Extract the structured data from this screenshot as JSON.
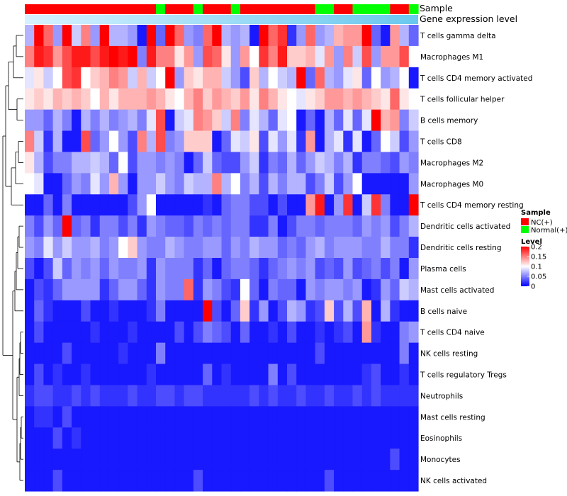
{
  "chart_data": {
    "type": "heatmap",
    "title": "",
    "annotation_labels": {
      "sample": "Sample",
      "level": "Gene expression level"
    },
    "sample_groups": [
      "NC",
      "NC",
      "NC",
      "NC",
      "NC",
      "NC",
      "NC",
      "NC",
      "NC",
      "NC",
      "NC",
      "NC",
      "NC",
      "NC",
      "Normal",
      "NC",
      "NC",
      "NC",
      "Normal",
      "NC",
      "NC",
      "NC",
      "Normal",
      "NC",
      "NC",
      "NC",
      "NC",
      "NC",
      "NC",
      "NC",
      "NC",
      "Normal",
      "Normal",
      "NC",
      "NC",
      "Normal",
      "Normal",
      "Normal",
      "Normal",
      "NC",
      "NC",
      "Normal"
    ],
    "rows": [
      {
        "label": "T cells gamma delta",
        "values": [
          0.07,
          0.2,
          0.16,
          0.06,
          0.2,
          0.08,
          0.15,
          0.06,
          0.2,
          0.07,
          0.07,
          0.06,
          0.01,
          0.2,
          0.04,
          0.2,
          0.16,
          0.06,
          0.05,
          0.16,
          0.2,
          0.07,
          0.06,
          0.07,
          0.01,
          0.2,
          0.16,
          0.18,
          0.02,
          0.06,
          0.16,
          0.06,
          0.07,
          0.13,
          0.14,
          0.14,
          0.2,
          0.04,
          0.01,
          0.14,
          0.07,
          0.04
        ]
      },
      {
        "label": "Macrophages M1",
        "values": [
          0.15,
          0.19,
          0.18,
          0.14,
          0.17,
          0.19,
          0.19,
          0.17,
          0.19,
          0.2,
          0.19,
          0.2,
          0.05,
          0.19,
          0.15,
          0.15,
          0.11,
          0.14,
          0.06,
          0.17,
          0.16,
          0.11,
          0.06,
          0.14,
          0.1,
          0.18,
          0.15,
          0.19,
          0.12,
          0.12,
          0.13,
          0.09,
          0.14,
          0.06,
          0.15,
          0.08,
          0.17,
          0.06,
          0.14,
          0.14,
          0.17,
          0.1
        ]
      },
      {
        "label": "T cells CD4 memory activated",
        "values": [
          0.09,
          0.11,
          0.08,
          0.1,
          0.17,
          0.18,
          0.1,
          0.12,
          0.13,
          0.15,
          0.14,
          0.08,
          0.13,
          0.08,
          0.1,
          0.2,
          0.06,
          0.12,
          0.11,
          0.13,
          0.13,
          0.08,
          0.06,
          0.03,
          0.12,
          0.07,
          0.1,
          0.08,
          0.07,
          0.2,
          0.04,
          0.16,
          0.07,
          0.06,
          0.09,
          0.11,
          0.04,
          0.1,
          0.06,
          0.07,
          0.1,
          0.01
        ]
      },
      {
        "label": "T cells follicular helper",
        "values": [
          0.11,
          0.12,
          0.11,
          0.13,
          0.12,
          0.13,
          0.12,
          0.1,
          0.13,
          0.11,
          0.13,
          0.13,
          0.13,
          0.14,
          0.13,
          0.11,
          0.1,
          0.13,
          0.15,
          0.12,
          0.14,
          0.13,
          0.12,
          0.14,
          0.11,
          0.15,
          0.13,
          0.11,
          0.1,
          0.09,
          0.11,
          0.12,
          0.14,
          0.14,
          0.13,
          0.14,
          0.13,
          0.12,
          0.11,
          0.16,
          0.11,
          0.1
        ]
      },
      {
        "label": "B cells memory",
        "values": [
          0.06,
          0.06,
          0.04,
          0.07,
          0.05,
          0.01,
          0.07,
          0.05,
          0.07,
          0.05,
          0.06,
          0.07,
          0.05,
          0.09,
          0.17,
          0.01,
          0.08,
          0.09,
          0.15,
          0.14,
          0.12,
          0.08,
          0.15,
          0.05,
          0.09,
          0.07,
          0.04,
          0.09,
          0.1,
          0.01,
          0.04,
          0.01,
          0.07,
          0.04,
          0.09,
          0.04,
          0.09,
          0.2,
          0.13,
          0.14,
          0.05,
          0.08
        ]
      },
      {
        "label": "T cells CD8",
        "values": [
          0.15,
          0.08,
          0.02,
          0.07,
          0.01,
          0.01,
          0.17,
          0.04,
          0.06,
          0.1,
          0.06,
          0.03,
          0.15,
          0.07,
          0.17,
          0.05,
          0.06,
          0.12,
          0.12,
          0.12,
          0.01,
          0.04,
          0.09,
          0.08,
          0.11,
          0.03,
          0.09,
          0.06,
          0.09,
          0.02,
          0.14,
          0.01,
          0.07,
          0.09,
          0.02,
          0.09,
          0.01,
          0.04,
          0.1,
          0.08,
          0.03,
          0.06
        ]
      },
      {
        "label": "Macrophages M2",
        "values": [
          0.11,
          0.07,
          0.03,
          0.05,
          0.05,
          0.07,
          0.07,
          0.08,
          0.07,
          0.04,
          0.1,
          0.03,
          0.06,
          0.06,
          0.05,
          0.06,
          0.05,
          0.01,
          0.04,
          0.08,
          0.04,
          0.03,
          0.03,
          0.06,
          0.08,
          0.02,
          0.05,
          0.04,
          0.07,
          0.04,
          0.06,
          0.08,
          0.07,
          0.05,
          0.07,
          0.02,
          0.05,
          0.05,
          0.04,
          0.03,
          0.06,
          0.05
        ]
      },
      {
        "label": "Macrophages M0",
        "values": [
          0.1,
          0.09,
          0.01,
          0.01,
          0.04,
          0.06,
          0.05,
          0.09,
          0.06,
          0.13,
          0.06,
          0.01,
          0.06,
          0.06,
          0.08,
          0.06,
          0.05,
          0.08,
          0.07,
          0.07,
          0.15,
          0.07,
          0.1,
          0.05,
          0.07,
          0.03,
          0.07,
          0.05,
          0.07,
          0.07,
          0.03,
          0.05,
          0.08,
          0.03,
          0.06,
          0.1,
          0.01,
          0.01,
          0.01,
          0.01,
          0.01,
          0.06
        ]
      },
      {
        "label": "T cells CD4 memory resting",
        "values": [
          0.01,
          0.01,
          0.04,
          0.01,
          0.05,
          0.01,
          0.01,
          0.01,
          0.01,
          0.01,
          0.01,
          0.03,
          0.06,
          0.1,
          0.01,
          0.01,
          0.01,
          0.01,
          0.01,
          0.02,
          0.01,
          0.04,
          0.05,
          0.05,
          0.03,
          0.03,
          0.01,
          0.03,
          0.01,
          0.01,
          0.14,
          0.19,
          0.01,
          0.06,
          0.18,
          0.01,
          0.08,
          0.18,
          0.05,
          0.01,
          0.01,
          0.2
        ]
      },
      {
        "label": "Dendritic cells activated",
        "values": [
          0.05,
          0.03,
          0.06,
          0.04,
          0.2,
          0.04,
          0.05,
          0.02,
          0.05,
          0.05,
          0.03,
          0.05,
          0.02,
          0.06,
          0.05,
          0.04,
          0.04,
          0.03,
          0.05,
          0.04,
          0.05,
          0.04,
          0.05,
          0.05,
          0.02,
          0.02,
          0.05,
          0.01,
          0.03,
          0.05,
          0.05,
          0.04,
          0.05,
          0.05,
          0.05,
          0.04,
          0.06,
          0.05,
          0.06,
          0.03,
          0.05,
          0.07
        ]
      },
      {
        "label": "Dendritic cells resting",
        "values": [
          0.06,
          0.05,
          0.09,
          0.06,
          0.08,
          0.06,
          0.06,
          0.07,
          0.05,
          0.06,
          0.1,
          0.12,
          0.06,
          0.05,
          0.05,
          0.07,
          0.06,
          0.05,
          0.05,
          0.06,
          0.06,
          0.04,
          0.06,
          0.05,
          0.07,
          0.06,
          0.06,
          0.04,
          0.05,
          0.04,
          0.06,
          0.07,
          0.05,
          0.06,
          0.06,
          0.06,
          0.05,
          0.05,
          0.07,
          0.05,
          0.05,
          0.02
        ]
      },
      {
        "label": "Plasma cells",
        "values": [
          0.03,
          0.01,
          0.03,
          0.08,
          0.04,
          0.06,
          0.05,
          0.06,
          0.04,
          0.06,
          0.05,
          0.05,
          0.06,
          0.02,
          0.06,
          0.05,
          0.05,
          0.05,
          0.02,
          0.04,
          0.01,
          0.04,
          0.05,
          0.05,
          0.04,
          0.02,
          0.04,
          0.05,
          0.06,
          0.05,
          0.06,
          0.03,
          0.04,
          0.03,
          0.06,
          0.03,
          0.04,
          0.05,
          0.03,
          0.05,
          0.01,
          0.06
        ]
      },
      {
        "label": "Mast cells activated",
        "values": [
          0.01,
          0.03,
          0.02,
          0.04,
          0.06,
          0.06,
          0.06,
          0.06,
          0.02,
          0.04,
          0.06,
          0.06,
          0.04,
          0.02,
          0.06,
          0.05,
          0.05,
          0.16,
          0.02,
          0.06,
          0.05,
          0.03,
          0.02,
          0.1,
          0.04,
          0.01,
          0.05,
          0.04,
          0.04,
          0.01,
          0.06,
          0.05,
          0.06,
          0.06,
          0.05,
          0.06,
          0.01,
          0.02,
          0.06,
          0.04,
          0.08,
          0.07
        ]
      },
      {
        "label": "B cells naive",
        "values": [
          0.01,
          0.04,
          0.02,
          0.01,
          0.01,
          0.01,
          0.03,
          0.01,
          0.01,
          0.02,
          0.01,
          0.01,
          0.01,
          0.02,
          0.05,
          0.01,
          0.01,
          0.01,
          0.01,
          0.2,
          0.03,
          0.01,
          0.04,
          0.12,
          0.02,
          0.06,
          0.01,
          0.03,
          0.07,
          0.06,
          0.02,
          0.03,
          0.12,
          0.03,
          0.07,
          0.03,
          0.13,
          0.01,
          0.07,
          0.02,
          0.01,
          0.01
        ]
      },
      {
        "label": "T cells CD4 naive",
        "values": [
          0.01,
          0.03,
          0.01,
          0.01,
          0.01,
          0.01,
          0.01,
          0.02,
          0.01,
          0.01,
          0.01,
          0.02,
          0.01,
          0.01,
          0.01,
          0.01,
          0.03,
          0.01,
          0.03,
          0.05,
          0.04,
          0.03,
          0.01,
          0.04,
          0.01,
          0.01,
          0.02,
          0.01,
          0.03,
          0.01,
          0.01,
          0.02,
          0.01,
          0.02,
          0.03,
          0.01,
          0.14,
          0.02,
          0.01,
          0.01,
          0.05,
          0.06
        ]
      },
      {
        "label": "NK cells resting",
        "values": [
          0.01,
          0.01,
          0.01,
          0.01,
          0.03,
          0.01,
          0.01,
          0.01,
          0.01,
          0.01,
          0.02,
          0.01,
          0.01,
          0.01,
          0.05,
          0.01,
          0.01,
          0.01,
          0.01,
          0.01,
          0.01,
          0.01,
          0.01,
          0.01,
          0.01,
          0.01,
          0.01,
          0.01,
          0.01,
          0.01,
          0.01,
          0.03,
          0.01,
          0.01,
          0.01,
          0.01,
          0.01,
          0.01,
          0.01,
          0.01,
          0.05,
          0.01
        ]
      },
      {
        "label": "T cells regulatory  Tregs",
        "values": [
          0.01,
          0.03,
          0.01,
          0.02,
          0.01,
          0.01,
          0.02,
          0.01,
          0.01,
          0.01,
          0.01,
          0.01,
          0.01,
          0.02,
          0.01,
          0.01,
          0.01,
          0.01,
          0.01,
          0.04,
          0.01,
          0.02,
          0.01,
          0.01,
          0.01,
          0.01,
          0.05,
          0.01,
          0.03,
          0.01,
          0.01,
          0.01,
          0.01,
          0.01,
          0.01,
          0.01,
          0.02,
          0.03,
          0.01,
          0.01,
          0.02,
          0.01
        ]
      },
      {
        "label": "Neutrophils",
        "values": [
          0.02,
          0.03,
          0.03,
          0.02,
          0.02,
          0.03,
          0.02,
          0.03,
          0.02,
          0.02,
          0.02,
          0.03,
          0.02,
          0.02,
          0.03,
          0.03,
          0.02,
          0.03,
          0.03,
          0.02,
          0.02,
          0.02,
          0.02,
          0.02,
          0.03,
          0.02,
          0.03,
          0.02,
          0.02,
          0.03,
          0.02,
          0.02,
          0.03,
          0.02,
          0.02,
          0.03,
          0.02,
          0.03,
          0.02,
          0.02,
          0.02,
          0.02
        ]
      },
      {
        "label": "Mast cells resting",
        "values": [
          0.01,
          0.02,
          0.02,
          0.01,
          0.03,
          0.01,
          0.01,
          0.01,
          0.01,
          0.01,
          0.01,
          0.01,
          0.01,
          0.01,
          0.01,
          0.01,
          0.01,
          0.01,
          0.01,
          0.01,
          0.01,
          0.01,
          0.01,
          0.01,
          0.01,
          0.01,
          0.01,
          0.01,
          0.01,
          0.01,
          0.01,
          0.01,
          0.01,
          0.01,
          0.01,
          0.01,
          0.01,
          0.01,
          0.01,
          0.01,
          0.01,
          0.01
        ]
      },
      {
        "label": "Eosinophils",
        "values": [
          0.01,
          0.01,
          0.01,
          0.03,
          0.01,
          0.02,
          0.01,
          0.01,
          0.01,
          0.01,
          0.01,
          0.01,
          0.01,
          0.01,
          0.01,
          0.01,
          0.01,
          0.01,
          0.01,
          0.01,
          0.01,
          0.01,
          0.01,
          0.01,
          0.01,
          0.01,
          0.01,
          0.01,
          0.01,
          0.01,
          0.01,
          0.01,
          0.01,
          0.01,
          0.01,
          0.01,
          0.01,
          0.01,
          0.01,
          0.01,
          0.01,
          0.01
        ]
      },
      {
        "label": "Monocytes",
        "values": [
          0.01,
          0.01,
          0.01,
          0.01,
          0.01,
          0.01,
          0.01,
          0.01,
          0.01,
          0.01,
          0.01,
          0.01,
          0.01,
          0.01,
          0.01,
          0.01,
          0.01,
          0.01,
          0.01,
          0.01,
          0.01,
          0.01,
          0.01,
          0.01,
          0.01,
          0.01,
          0.01,
          0.01,
          0.01,
          0.01,
          0.01,
          0.01,
          0.01,
          0.01,
          0.01,
          0.01,
          0.01,
          0.01,
          0.01,
          0.03,
          0.01,
          0.01
        ]
      },
      {
        "label": "NK cells activated",
        "values": [
          0.01,
          0.01,
          0.01,
          0.03,
          0.01,
          0.01,
          0.01,
          0.01,
          0.01,
          0.01,
          0.01,
          0.01,
          0.01,
          0.01,
          0.01,
          0.01,
          0.01,
          0.01,
          0.03,
          0.01,
          0.01,
          0.01,
          0.01,
          0.01,
          0.01,
          0.01,
          0.01,
          0.01,
          0.01,
          0.01,
          0.01,
          0.01,
          0.03,
          0.01,
          0.01,
          0.01,
          0.01,
          0.01,
          0.01,
          0.01,
          0.01,
          0.01
        ]
      }
    ],
    "color_scale": {
      "min": 0,
      "mid": 0.1,
      "max": 0.2,
      "low_color": "#0000ff",
      "mid_color": "#ffffff",
      "high_color": "#ff0000"
    },
    "legend_sample": {
      "title": "Sample",
      "items": [
        {
          "label": "NC(+)",
          "color": "#ff0000"
        },
        {
          "label": "Normal(+)",
          "color": "#00ff00"
        }
      ]
    },
    "legend_level": {
      "title": "Level",
      "ticks": [
        {
          "value": 0.2,
          "label": "0.2"
        },
        {
          "value": 0.15,
          "label": "0.15"
        },
        {
          "value": 0.1,
          "label": "0.1"
        },
        {
          "value": 0.05,
          "label": "0.05"
        },
        {
          "value": 0,
          "label": "0"
        }
      ]
    },
    "level_bar_colors": [
      "#d7f1ff",
      "#6ac8ee"
    ],
    "group_colors": {
      "NC": "#ff0000",
      "Normal": "#00ff00"
    }
  }
}
